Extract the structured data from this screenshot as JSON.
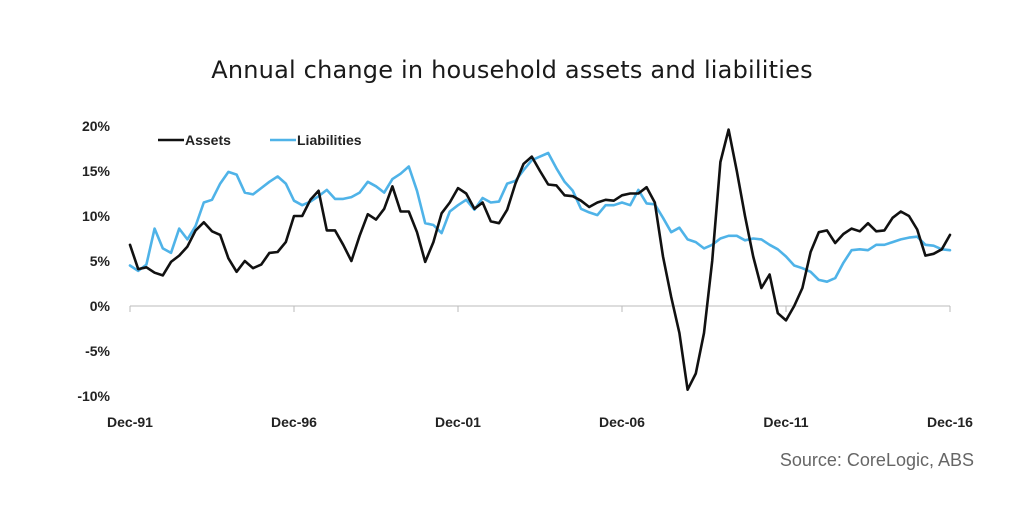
{
  "title": "Annual change in household assets and liabilities",
  "source": "Source: CoreLogic, ABS",
  "colors": {
    "assets": "#111111",
    "liabilities": "#4fb3e8",
    "axis": "#bbbbbb"
  },
  "chart_data": {
    "type": "line",
    "title": "Annual change in household assets and liabilities",
    "xlabel": "",
    "ylabel": "",
    "x_start": "Dec-91",
    "x_end": "Dec-16",
    "x_ticks": [
      "Dec-91",
      "Dec-96",
      "Dec-01",
      "Dec-06",
      "Dec-11",
      "Dec-16"
    ],
    "x_tick_positions": [
      1991.92,
      1996.92,
      2001.92,
      2006.92,
      2011.92,
      2016.92
    ],
    "y_ticks": [
      20,
      15,
      10,
      5,
      0,
      -5,
      -10
    ],
    "y_tick_labels": [
      "20%",
      "15%",
      "10%",
      "5%",
      "0%",
      "-5%",
      "-10%"
    ],
    "ylim": [
      -10,
      20
    ],
    "legend": "top-left",
    "grid": false,
    "series": [
      {
        "name": "Assets",
        "points": [
          [
            1991.92,
            6.8
          ],
          [
            1992.17,
            4.1
          ],
          [
            1992.42,
            4.3
          ],
          [
            1992.67,
            3.7
          ],
          [
            1992.92,
            3.4
          ],
          [
            1993.17,
            4.9
          ],
          [
            1993.42,
            5.6
          ],
          [
            1993.67,
            6.6
          ],
          [
            1993.92,
            8.4
          ],
          [
            1994.17,
            9.3
          ],
          [
            1994.42,
            8.3
          ],
          [
            1994.67,
            7.9
          ],
          [
            1994.92,
            5.3
          ],
          [
            1995.17,
            3.8
          ],
          [
            1995.42,
            5.0
          ],
          [
            1995.67,
            4.2
          ],
          [
            1995.92,
            4.6
          ],
          [
            1996.17,
            5.9
          ],
          [
            1996.42,
            6.0
          ],
          [
            1996.67,
            7.1
          ],
          [
            1996.92,
            10.0
          ],
          [
            1997.17,
            10.0
          ],
          [
            1997.42,
            11.8
          ],
          [
            1997.67,
            12.8
          ],
          [
            1997.92,
            8.4
          ],
          [
            1998.17,
            8.4
          ],
          [
            1998.42,
            6.8
          ],
          [
            1998.67,
            5.0
          ],
          [
            1998.92,
            7.8
          ],
          [
            1999.17,
            10.2
          ],
          [
            1999.42,
            9.6
          ],
          [
            1999.67,
            10.8
          ],
          [
            1999.92,
            13.3
          ],
          [
            2000.17,
            10.5
          ],
          [
            2000.42,
            10.5
          ],
          [
            2000.67,
            8.2
          ],
          [
            2000.92,
            4.9
          ],
          [
            2001.17,
            7.1
          ],
          [
            2001.42,
            10.3
          ],
          [
            2001.67,
            11.5
          ],
          [
            2001.92,
            13.1
          ],
          [
            2002.17,
            12.5
          ],
          [
            2002.42,
            10.8
          ],
          [
            2002.67,
            11.5
          ],
          [
            2002.92,
            9.4
          ],
          [
            2003.17,
            9.2
          ],
          [
            2003.42,
            10.7
          ],
          [
            2003.67,
            13.6
          ],
          [
            2003.92,
            15.8
          ],
          [
            2004.17,
            16.6
          ],
          [
            2004.42,
            15.0
          ],
          [
            2004.67,
            13.5
          ],
          [
            2004.92,
            13.4
          ],
          [
            2005.17,
            12.3
          ],
          [
            2005.42,
            12.2
          ],
          [
            2005.67,
            11.7
          ],
          [
            2005.92,
            11.0
          ],
          [
            2006.17,
            11.5
          ],
          [
            2006.42,
            11.8
          ],
          [
            2006.67,
            11.7
          ],
          [
            2006.92,
            12.3
          ],
          [
            2007.17,
            12.5
          ],
          [
            2007.42,
            12.5
          ],
          [
            2007.67,
            13.2
          ],
          [
            2007.92,
            11.5
          ],
          [
            2008.17,
            5.5
          ],
          [
            2008.42,
            1.0
          ],
          [
            2008.67,
            -3.0
          ],
          [
            2008.92,
            -9.3
          ],
          [
            2009.17,
            -7.5
          ],
          [
            2009.42,
            -3.0
          ],
          [
            2009.67,
            5.0
          ],
          [
            2009.92,
            16.0
          ],
          [
            2010.17,
            19.6
          ],
          [
            2010.42,
            15.0
          ],
          [
            2010.67,
            10.0
          ],
          [
            2010.92,
            5.5
          ],
          [
            2011.17,
            2.0
          ],
          [
            2011.42,
            3.5
          ],
          [
            2011.67,
            -0.8
          ],
          [
            2011.92,
            -1.6
          ],
          [
            2012.17,
            0.0
          ],
          [
            2012.42,
            2.0
          ],
          [
            2012.67,
            6.0
          ],
          [
            2012.92,
            8.2
          ],
          [
            2013.17,
            8.4
          ],
          [
            2013.42,
            7.0
          ],
          [
            2013.67,
            8.0
          ],
          [
            2013.92,
            8.6
          ],
          [
            2014.17,
            8.3
          ],
          [
            2014.42,
            9.2
          ],
          [
            2014.67,
            8.3
          ],
          [
            2014.92,
            8.4
          ],
          [
            2015.17,
            9.8
          ],
          [
            2015.42,
            10.5
          ],
          [
            2015.67,
            10.0
          ],
          [
            2015.92,
            8.5
          ],
          [
            2016.17,
            5.6
          ],
          [
            2016.42,
            5.8
          ],
          [
            2016.67,
            6.3
          ],
          [
            2016.92,
            7.9
          ]
        ]
      },
      {
        "name": "Liabilities",
        "points": [
          [
            1991.92,
            4.5
          ],
          [
            1992.17,
            3.9
          ],
          [
            1992.42,
            4.6
          ],
          [
            1992.67,
            8.6
          ],
          [
            1992.92,
            6.4
          ],
          [
            1993.17,
            5.9
          ],
          [
            1993.42,
            8.6
          ],
          [
            1993.67,
            7.4
          ],
          [
            1993.92,
            8.9
          ],
          [
            1994.17,
            11.5
          ],
          [
            1994.42,
            11.8
          ],
          [
            1994.67,
            13.6
          ],
          [
            1994.92,
            14.9
          ],
          [
            1995.17,
            14.6
          ],
          [
            1995.42,
            12.6
          ],
          [
            1995.67,
            12.4
          ],
          [
            1995.92,
            13.1
          ],
          [
            1996.17,
            13.8
          ],
          [
            1996.42,
            14.4
          ],
          [
            1996.67,
            13.6
          ],
          [
            1996.92,
            11.7
          ],
          [
            1997.17,
            11.2
          ],
          [
            1997.42,
            11.6
          ],
          [
            1997.67,
            12.2
          ],
          [
            1997.92,
            12.9
          ],
          [
            1998.17,
            11.9
          ],
          [
            1998.42,
            11.9
          ],
          [
            1998.67,
            12.1
          ],
          [
            1998.92,
            12.6
          ],
          [
            1999.17,
            13.8
          ],
          [
            1999.42,
            13.3
          ],
          [
            1999.67,
            12.6
          ],
          [
            1999.92,
            14.1
          ],
          [
            2000.17,
            14.7
          ],
          [
            2000.42,
            15.5
          ],
          [
            2000.67,
            12.8
          ],
          [
            2000.92,
            9.2
          ],
          [
            2001.17,
            9.0
          ],
          [
            2001.42,
            8.1
          ],
          [
            2001.67,
            10.5
          ],
          [
            2001.92,
            11.2
          ],
          [
            2002.17,
            11.8
          ],
          [
            2002.42,
            10.7
          ],
          [
            2002.67,
            12.0
          ],
          [
            2002.92,
            11.5
          ],
          [
            2003.17,
            11.6
          ],
          [
            2003.42,
            13.6
          ],
          [
            2003.67,
            13.9
          ],
          [
            2003.92,
            15.1
          ],
          [
            2004.17,
            16.2
          ],
          [
            2004.42,
            16.6
          ],
          [
            2004.67,
            17.0
          ],
          [
            2004.92,
            15.3
          ],
          [
            2005.17,
            13.8
          ],
          [
            2005.42,
            12.8
          ],
          [
            2005.67,
            10.8
          ],
          [
            2005.92,
            10.4
          ],
          [
            2006.17,
            10.1
          ],
          [
            2006.42,
            11.2
          ],
          [
            2006.67,
            11.2
          ],
          [
            2006.92,
            11.5
          ],
          [
            2007.17,
            11.2
          ],
          [
            2007.42,
            12.9
          ],
          [
            2007.67,
            11.4
          ],
          [
            2007.92,
            11.3
          ],
          [
            2008.17,
            9.8
          ],
          [
            2008.42,
            8.2
          ],
          [
            2008.67,
            8.7
          ],
          [
            2008.92,
            7.4
          ],
          [
            2009.17,
            7.1
          ],
          [
            2009.42,
            6.4
          ],
          [
            2009.67,
            6.8
          ],
          [
            2009.92,
            7.5
          ],
          [
            2010.17,
            7.8
          ],
          [
            2010.42,
            7.8
          ],
          [
            2010.67,
            7.3
          ],
          [
            2010.92,
            7.5
          ],
          [
            2011.17,
            7.4
          ],
          [
            2011.42,
            6.8
          ],
          [
            2011.67,
            6.3
          ],
          [
            2011.92,
            5.5
          ],
          [
            2012.17,
            4.5
          ],
          [
            2012.42,
            4.2
          ],
          [
            2012.67,
            3.8
          ],
          [
            2012.92,
            2.9
          ],
          [
            2013.17,
            2.7
          ],
          [
            2013.42,
            3.1
          ],
          [
            2013.67,
            4.8
          ],
          [
            2013.92,
            6.2
          ],
          [
            2014.17,
            6.3
          ],
          [
            2014.42,
            6.2
          ],
          [
            2014.67,
            6.8
          ],
          [
            2014.92,
            6.8
          ],
          [
            2015.17,
            7.1
          ],
          [
            2015.42,
            7.4
          ],
          [
            2015.67,
            7.6
          ],
          [
            2015.92,
            7.7
          ],
          [
            2016.17,
            6.8
          ],
          [
            2016.42,
            6.7
          ],
          [
            2016.67,
            6.3
          ],
          [
            2016.92,
            6.2
          ]
        ]
      }
    ]
  }
}
